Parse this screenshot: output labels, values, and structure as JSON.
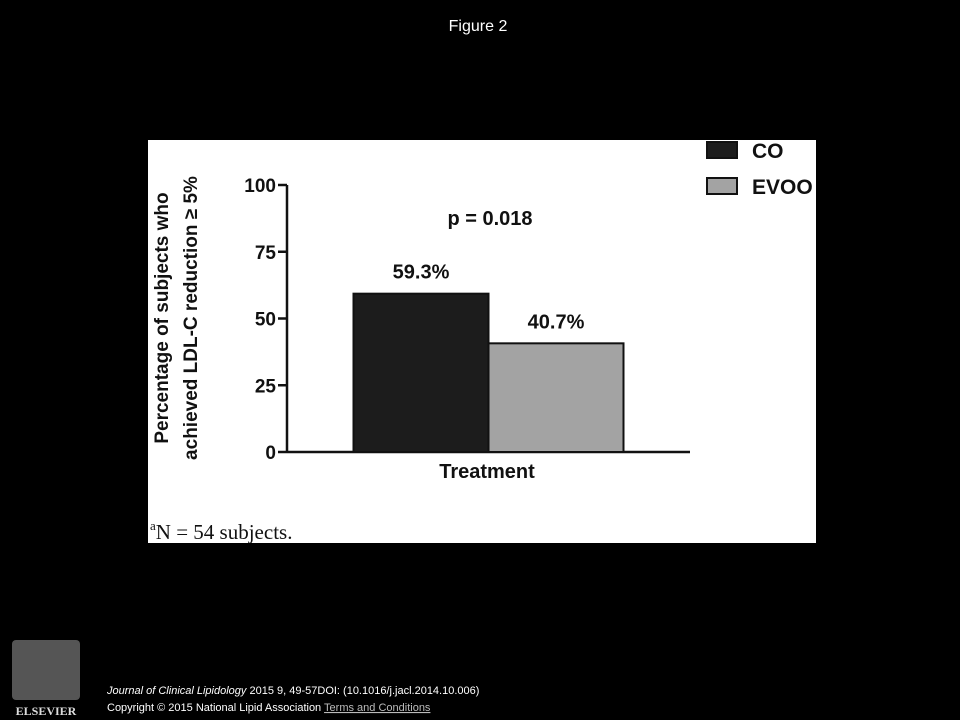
{
  "header": {
    "title": "Figure 2"
  },
  "chart_data": {
    "type": "bar",
    "y_label": [
      "Percentage of subjects who",
      "achieved LDL-C reduction ≥ 5%"
    ],
    "x_label": "Treatment",
    "annotation": "p = 0.018",
    "categories": [
      null
    ],
    "series": [
      {
        "name": "CO",
        "color": "#1c1c1c",
        "values": [
          59.3
        ],
        "value_labels": [
          "59.3%"
        ]
      },
      {
        "name": "EVOO",
        "color": "#a3a3a3",
        "values": [
          40.7
        ],
        "value_labels": [
          "40.7%"
        ]
      }
    ],
    "ylim": [
      0,
      100
    ],
    "yticks": [
      0,
      25,
      50,
      75,
      100
    ],
    "legend": "top-right",
    "footnote_marker": "a",
    "footnote": "N = 54 subjects."
  },
  "footer": {
    "logo": "ELSEVIER",
    "journal": "Journal of Clinical Lipidology",
    "citation": " 2015 9, 49-57DOI: (10.1016/j.jacl.2014.10.006)",
    "copyright": "Copyright © 2015 National Lipid Association ",
    "link": "Terms and Conditions"
  }
}
